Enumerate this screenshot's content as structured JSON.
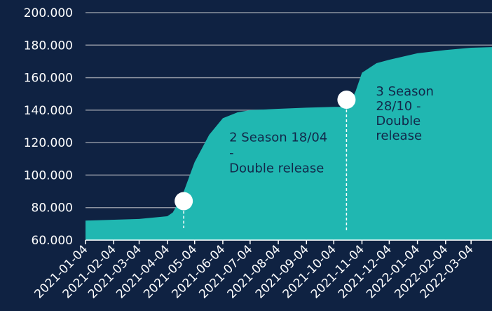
{
  "chart_data": {
    "type": "area",
    "x": [
      "2021-01-04",
      "2021-03-04",
      "2021-04-04",
      "2021-04-10",
      "2021-04-20",
      "2021-05-04",
      "2021-05-20",
      "2021-06-04",
      "2021-06-20",
      "2021-07-04",
      "2021-08-04",
      "2021-09-04",
      "2021-10-04",
      "2021-10-20",
      "2021-10-28",
      "2021-11-04",
      "2021-11-20",
      "2021-12-04",
      "2022-01-04",
      "2022-02-04",
      "2022-03-04",
      "2022-03-27"
    ],
    "series": [
      {
        "color": "#20b7b1",
        "values": [
          72000,
          73000,
          74700,
          77000,
          86800,
          108000,
          124800,
          135000,
          138600,
          140000,
          140800,
          141500,
          142000,
          142000,
          151600,
          163000,
          168900,
          171000,
          175000,
          177000,
          178400,
          178800
        ]
      }
    ],
    "xlim": [
      "2021-01-04",
      "2022-03-27"
    ],
    "xticks": [
      "2021-01-04",
      "2021-02-04",
      "2021-03-04",
      "2021-04-04",
      "2021-05-04",
      "2021-06-04",
      "2021-07-04",
      "2021-08-04",
      "2021-09-04",
      "2021-10-04",
      "2021-11-04",
      "2021-12-04",
      "2022-01-04",
      "2022-02-04",
      "2022-03-04"
    ],
    "ylim": [
      60000,
      200000
    ],
    "yticks": [
      {
        "value": 60000,
        "label": "60.000"
      },
      {
        "value": 80000,
        "label": "80.000"
      },
      {
        "value": 100000,
        "label": "100.000"
      },
      {
        "value": 120000,
        "label": "120.000"
      },
      {
        "value": 140000,
        "label": "140.000"
      },
      {
        "value": 160000,
        "label": "160.000"
      },
      {
        "value": 180000,
        "label": "180.000"
      },
      {
        "value": 200000,
        "label": "200.000"
      }
    ],
    "grid": true,
    "annotations": [
      {
        "lines": [
          "2 Season 18/04",
          "-",
          "Double release"
        ],
        "x": "2021-04-22",
        "y": 84000
      },
      {
        "lines": [
          "3 Season",
          "28/10 -",
          "Double",
          "release"
        ],
        "x": "2021-10-18",
        "y": 146400
      }
    ]
  }
}
